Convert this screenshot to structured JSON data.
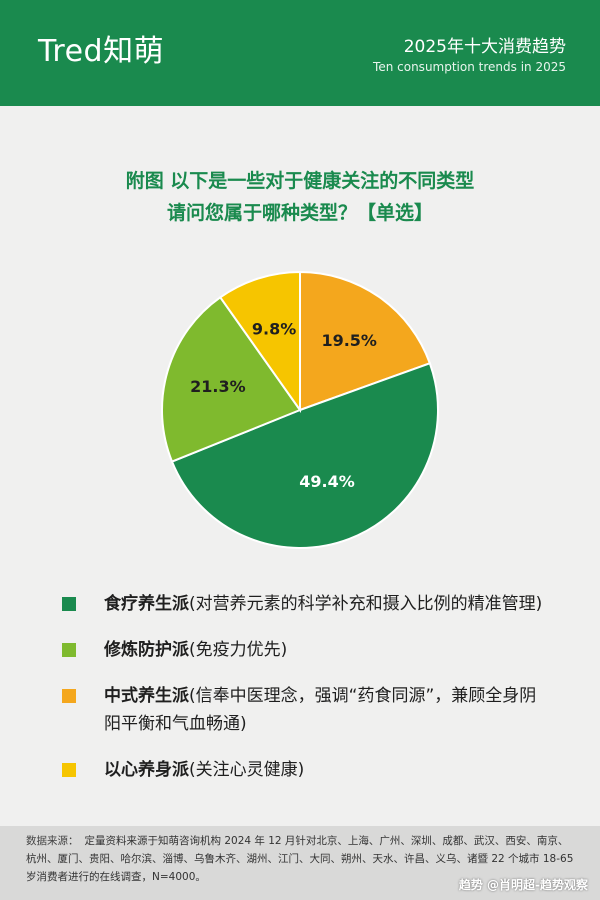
{
  "header": {
    "logo": "Tred知萌",
    "title": "2025年十大消费趋势",
    "subtitle": "Ten consumption trends in 2025"
  },
  "figure_title": {
    "line1": "附图 以下是一些对于健康关注的不同类型",
    "line2": "请问您属于哪种类型？【单选】"
  },
  "chart_data": {
    "type": "pie",
    "title": "附图 以下是一些对于健康关注的不同类型 请问您属于哪种类型？【单选】",
    "categories": [
      "食疗养生派",
      "修炼防护派",
      "中式养生派",
      "以心养身派"
    ],
    "values": [
      49.4,
      21.3,
      19.5,
      9.8
    ],
    "labels": [
      "49.4%",
      "21.3%",
      "19.5%",
      "9.8%"
    ],
    "colors": [
      "#1a8a4e",
      "#7fba2e",
      "#f4a71d",
      "#f6c500"
    ],
    "start_order": [
      "中式养生派",
      "食疗养生派",
      "修炼防护派",
      "以心养身派"
    ],
    "legend_placement": "bottom"
  },
  "legend": [
    {
      "name": "食疗养生派",
      "desc": "(对营养元素的科学补充和摄入比例的精准管理)",
      "color": "#1a8a4e"
    },
    {
      "name": "修炼防护派",
      "desc": "(免疫力优先)",
      "color": "#7fba2e"
    },
    {
      "name": "中式养生派",
      "desc": "(信奉中医理念，强调“药食同源”，兼顾全身阴阳平衡和气血畅通)",
      "color": "#f4a71d"
    },
    {
      "name": "以心养身派",
      "desc": "(关注心灵健康)",
      "color": "#f6c500"
    }
  ],
  "footer": {
    "label": "数据来源：",
    "text": "定量资料来源于知萌咨询机构 2024 年 12 月针对北京、上海、广州、深圳、成都、武汉、西安、南京、杭州、厦门、贵阳、哈尔滨、淄博、乌鲁木齐、湖州、江门、大同、朔州、天水、许昌、义乌、诸暨 22 个城市 18-65 岁消费者进行的在线调查，N=4000。",
    "credit": "趋势 @肖明超-趋势观察"
  }
}
